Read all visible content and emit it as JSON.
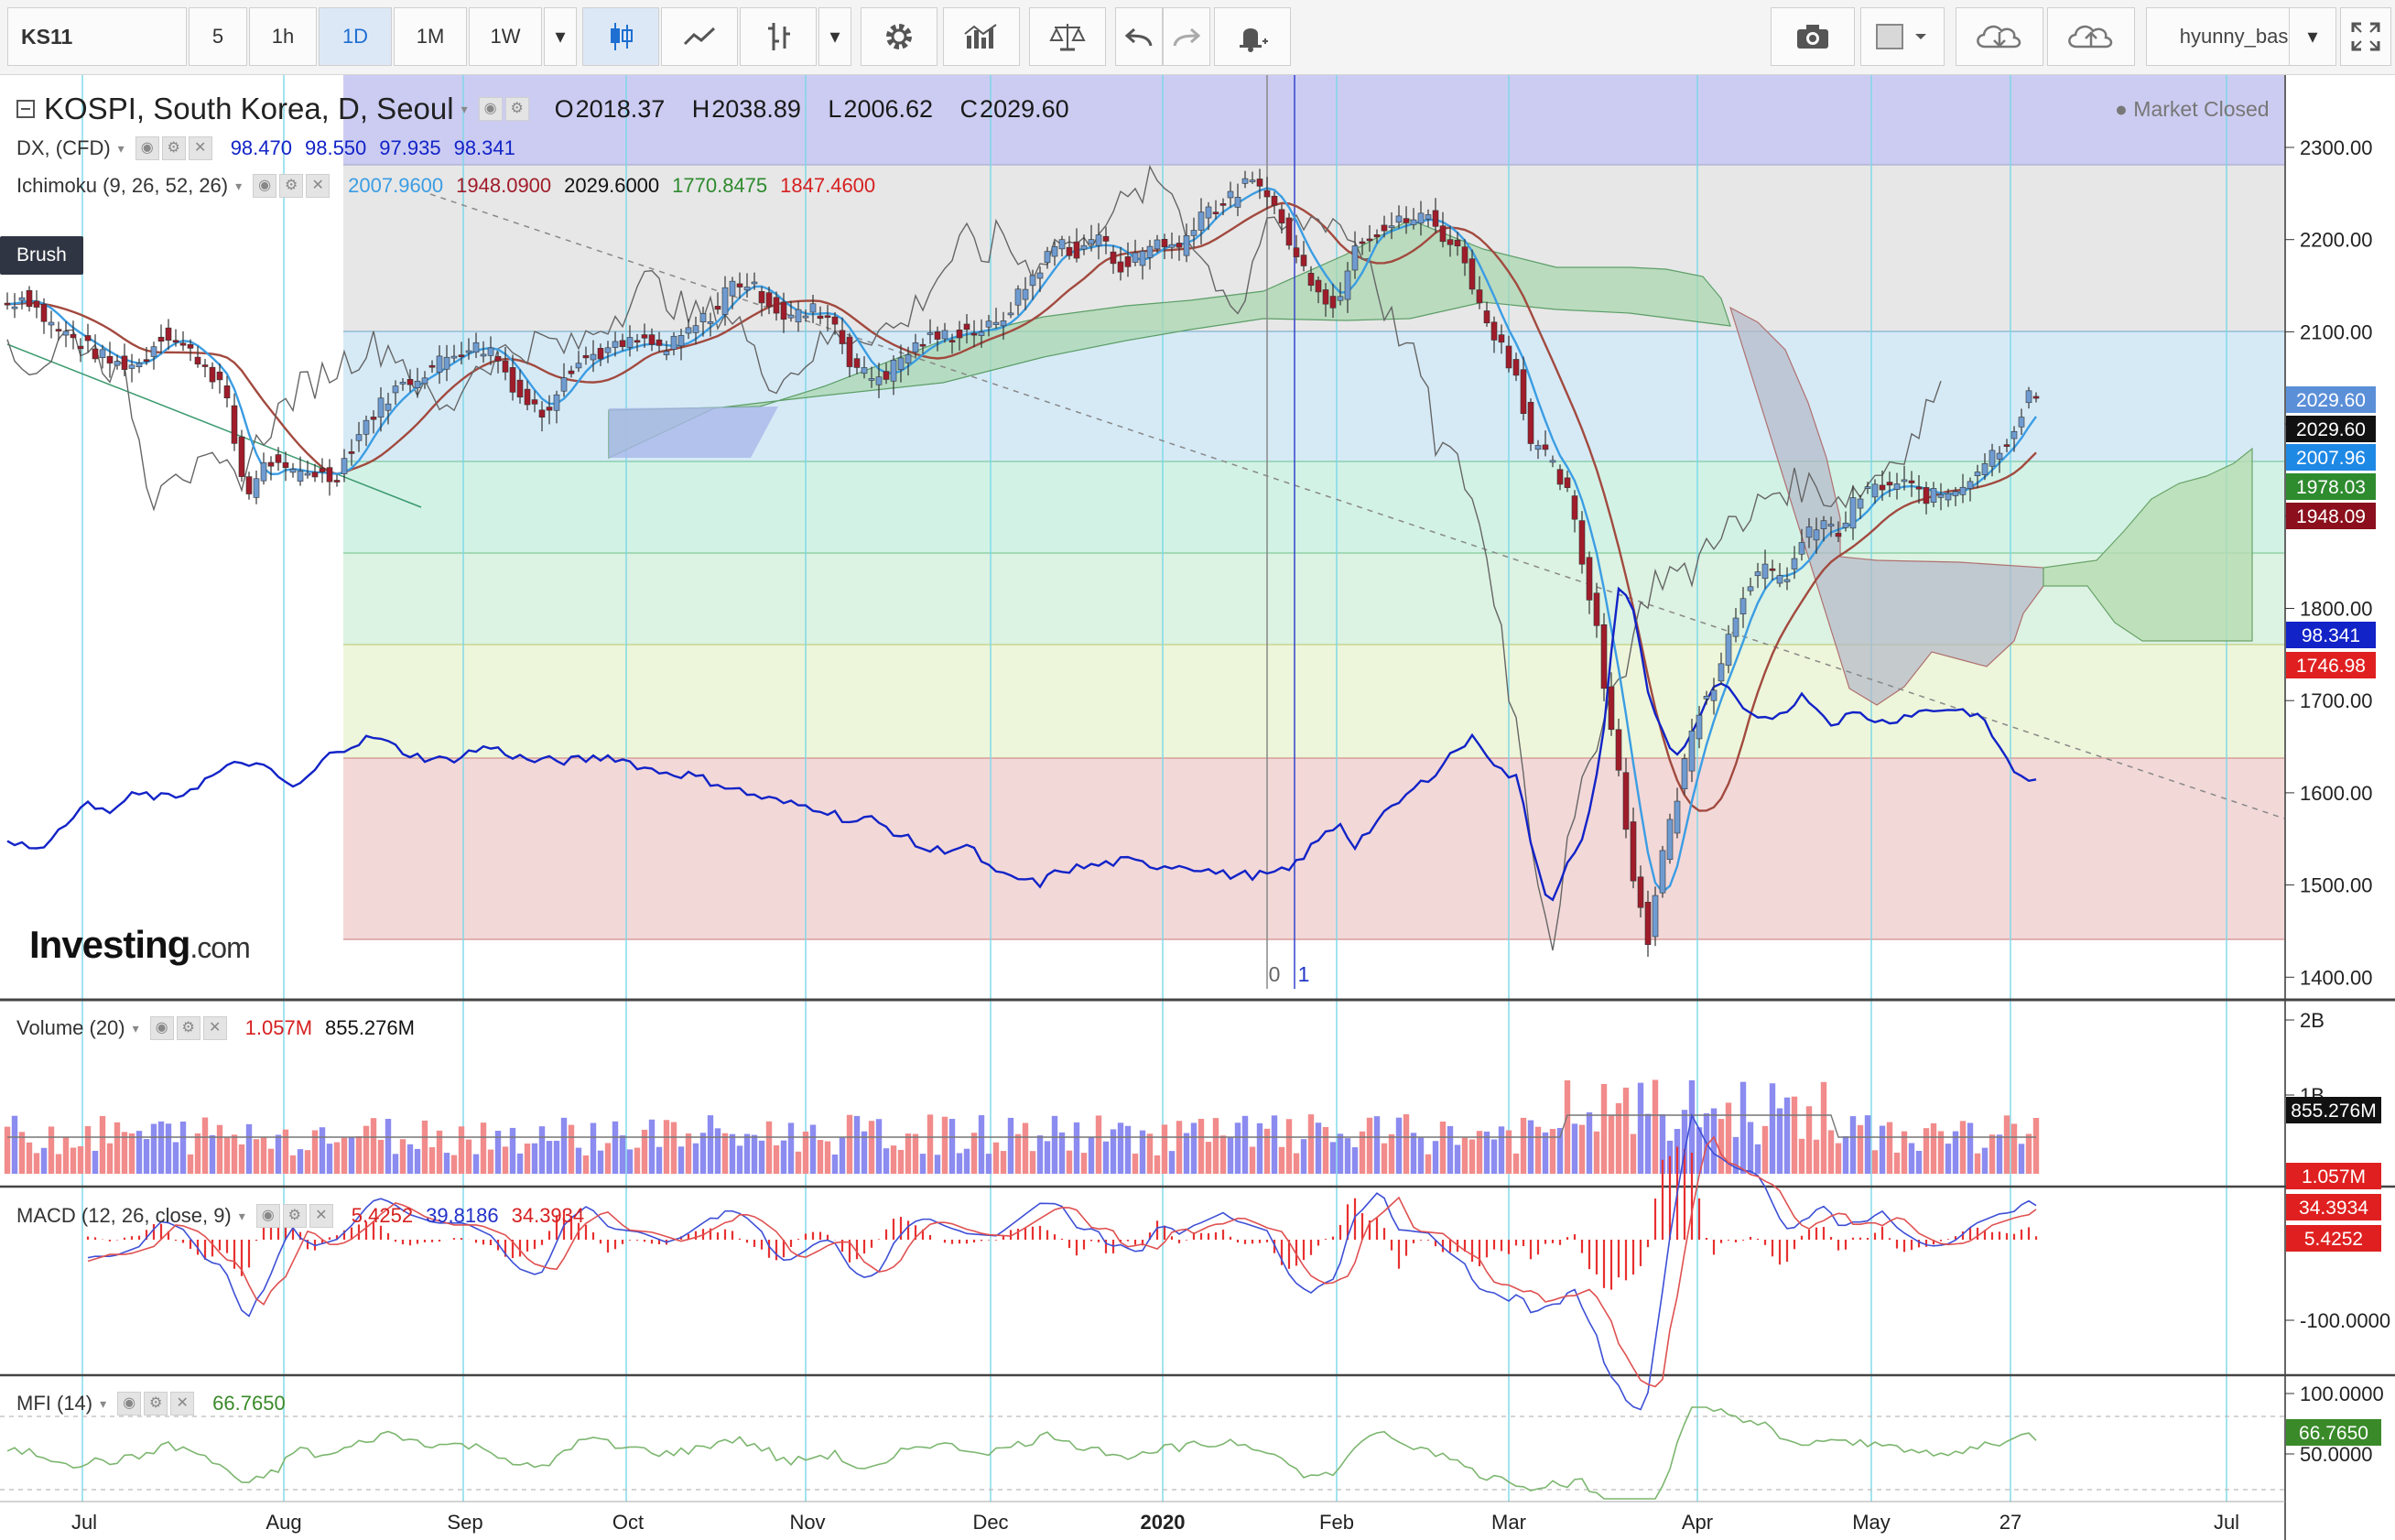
{
  "toolbar": {
    "symbol": "KS11",
    "intervals": [
      "5",
      "1h",
      "1D",
      "1M",
      "1W"
    ],
    "active_interval": "1D",
    "user": "hyunny_basic",
    "icons": [
      "candles-icon",
      "line-chart-icon",
      "bars-icon",
      "gear-icon",
      "indicators-icon",
      "compare-icon",
      "undo-icon",
      "redo-icon",
      "alert-icon",
      "camera-icon",
      "color-square-icon",
      "cloud-download-icon",
      "cloud-upload-icon",
      "fullscreen-icon"
    ]
  },
  "legend": {
    "title": "KOSPI, South Korea, D, Seoul",
    "open_label": "O",
    "open": "2018.37",
    "high_label": "H",
    "high": "2038.89",
    "low_label": "L",
    "low": "2006.62",
    "close_label": "C",
    "close": "2029.60",
    "market_status": "Market Closed",
    "dx_label": "DX, (CFD)",
    "dx_values": [
      "98.470",
      "98.550",
      "97.935",
      "98.341"
    ],
    "ichimoku_label": "Ichimoku (9, 26, 52, 26)",
    "ichimoku_values": [
      "2007.9600",
      "1948.0900",
      "2029.6000",
      "1770.8475",
      "1847.4600"
    ],
    "brush_tooltip": "Brush",
    "brand": "Investing",
    "brand_suffix": ".com"
  },
  "colors": {
    "bull_candle": "#6f9bd1",
    "bear_candle": "#a01c2a",
    "tenkan": "#3b9de3",
    "kijun": "#a24a3f",
    "chikou": "#666666",
    "dx": "#1223c7",
    "fib_gridline": "#7ad8e8",
    "volume_up": "#8b8bf0",
    "volume_down": "#f28b8b",
    "macd_line": "#3d4fd6",
    "signal_line": "#e05050",
    "histogram": "#e83030",
    "mfi_line": "#7cb66f"
  },
  "chart_data": [
    {
      "type": "candlestick",
      "title": "KOSPI, South Korea, D, Seoul",
      "x_ticks": [
        "Jul",
        "Aug",
        "Sep",
        "Oct",
        "Nov",
        "Dec",
        "2020",
        "Feb",
        "Mar",
        "Apr",
        "May",
        "27",
        "Jul"
      ],
      "y_ticks": [
        "2300.00",
        "2200.00",
        "2100.00",
        "2000.00",
        "1900.00",
        "1800.00",
        "1700.00",
        "1600.00",
        "1500.00",
        "1400.00"
      ],
      "ylim": [
        1400,
        2300
      ],
      "price_labels": [
        {
          "value": "2029.60",
          "series": "last close"
        },
        {
          "value": "2029.60",
          "series": "chikou"
        },
        {
          "value": "2007.96",
          "series": "tenkan"
        },
        {
          "value": "1978.03",
          "series": "senkou B"
        },
        {
          "value": "1948.09",
          "series": "kijun"
        },
        {
          "value": "98.341",
          "series": "DX"
        },
        {
          "value": "1746.98",
          "series": "senkou A"
        }
      ],
      "fib_levels": [
        2280,
        2100,
        1995,
        1855,
        1760,
        1640,
        1440
      ],
      "drawing_labels": [
        "0",
        "1"
      ],
      "close_path": [
        [
          0,
          2130
        ],
        [
          10,
          2140
        ],
        [
          22,
          2110
        ],
        [
          38,
          2090
        ],
        [
          46,
          2080
        ],
        [
          58,
          2065
        ],
        [
          72,
          2065
        ],
        [
          85,
          2100
        ],
        [
          105,
          2070
        ],
        [
          118,
          2040
        ],
        [
          122,
          2000
        ],
        [
          126,
          1960
        ],
        [
          131,
          1920
        ],
        [
          136,
          1945
        ],
        [
          143,
          1960
        ],
        [
          152,
          1945
        ],
        [
          165,
          1950
        ],
        [
          178,
          1940
        ],
        [
          195,
          2000
        ],
        [
          210,
          2035
        ],
        [
          230,
          2060
        ],
        [
          250,
          2085
        ],
        [
          265,
          2080
        ],
        [
          280,
          2030
        ],
        [
          293,
          2010
        ],
        [
          305,
          2060
        ],
        [
          320,
          2075
        ],
        [
          345,
          2090
        ],
        [
          360,
          2080
        ],
        [
          378,
          2110
        ],
        [
          388,
          2125
        ],
        [
          393,
          2150
        ],
        [
          402,
          2155
        ],
        [
          415,
          2135
        ],
        [
          425,
          2115
        ],
        [
          436,
          2120
        ],
        [
          442,
          2125
        ],
        [
          452,
          2110
        ],
        [
          460,
          2070
        ],
        [
          470,
          2050
        ],
        [
          480,
          2055
        ],
        [
          490,
          2075
        ],
        [
          500,
          2090
        ],
        [
          520,
          2100
        ],
        [
          540,
          2105
        ],
        [
          560,
          2160
        ],
        [
          575,
          2200
        ],
        [
          585,
          2180
        ],
        [
          595,
          2210
        ],
        [
          603,
          2180
        ],
        [
          610,
          2170
        ],
        [
          628,
          2200
        ],
        [
          640,
          2190
        ],
        [
          651,
          2230
        ],
        [
          666,
          2240
        ],
        [
          676,
          2260
        ],
        [
          688,
          2255
        ],
        [
          695,
          2220
        ],
        [
          705,
          2175
        ],
        [
          716,
          2150
        ],
        [
          726,
          2120
        ],
        [
          735,
          2200
        ],
        [
          748,
          2210
        ],
        [
          762,
          2220
        ],
        [
          776,
          2225
        ],
        [
          786,
          2200
        ],
        [
          796,
          2180
        ],
        [
          805,
          2120
        ],
        [
          812,
          2100
        ],
        [
          825,
          2050
        ],
        [
          832,
          1980
        ],
        [
          842,
          1960
        ],
        [
          853,
          1920
        ],
        [
          860,
          1850
        ],
        [
          868,
          1780
        ],
        [
          873,
          1700
        ],
        [
          878,
          1660
        ],
        [
          884,
          1560
        ],
        [
          890,
          1490
        ],
        [
          896,
          1440
        ],
        [
          902,
          1520
        ],
        [
          910,
          1580
        ],
        [
          918,
          1650
        ],
        [
          925,
          1700
        ],
        [
          932,
          1720
        ],
        [
          940,
          1770
        ],
        [
          950,
          1830
        ],
        [
          960,
          1840
        ],
        [
          970,
          1830
        ],
        [
          980,
          1870
        ],
        [
          990,
          1895
        ],
        [
          1000,
          1880
        ],
        [
          1010,
          1920
        ],
        [
          1020,
          1930
        ],
        [
          1035,
          1935
        ],
        [
          1050,
          1920
        ],
        [
          1065,
          1930
        ],
        [
          1075,
          1950
        ],
        [
          1085,
          1970
        ],
        [
          1095,
          1990
        ],
        [
          1103,
          2030
        ],
        [
          1108,
          2029.6
        ]
      ],
      "dx_path": [
        [
          0,
          97.2
        ],
        [
          10,
          97.0
        ],
        [
          25,
          97.1
        ],
        [
          40,
          97.9
        ],
        [
          55,
          97.7
        ],
        [
          70,
          98.1
        ],
        [
          90,
          98.0
        ],
        [
          118,
          98.6
        ],
        [
          130,
          98.8
        ],
        [
          142,
          98.6
        ],
        [
          158,
          98.2
        ],
        [
          178,
          99.0
        ],
        [
          200,
          99.3
        ],
        [
          222,
          98.9
        ],
        [
          240,
          98.8
        ],
        [
          262,
          99.1
        ],
        [
          285,
          98.8
        ],
        [
          310,
          98.8
        ],
        [
          330,
          98.9
        ],
        [
          352,
          98.6
        ],
        [
          372,
          98.5
        ],
        [
          390,
          98.3
        ],
        [
          405,
          98.1
        ],
        [
          425,
          97.9
        ],
        [
          445,
          97.8
        ],
        [
          462,
          97.5
        ],
        [
          470,
          97.6
        ],
        [
          485,
          97.3
        ],
        [
          503,
          96.9
        ],
        [
          525,
          97.0
        ],
        [
          540,
          96.4
        ],
        [
          555,
          96.3
        ],
        [
          563,
          96.2
        ],
        [
          575,
          96.5
        ],
        [
          595,
          96.6
        ],
        [
          610,
          96.7
        ],
        [
          625,
          96.6
        ],
        [
          645,
          96.6
        ],
        [
          665,
          96.4
        ],
        [
          690,
          96.4
        ],
        [
          700,
          96.5
        ],
        [
          718,
          97.2
        ],
        [
          728,
          97.5
        ],
        [
          735,
          97.0
        ],
        [
          748,
          97.5
        ],
        [
          762,
          98.0
        ],
        [
          778,
          98.5
        ],
        [
          790,
          99.0
        ],
        [
          802,
          99.3
        ],
        [
          815,
          98.6
        ],
        [
          825,
          98.4
        ],
        [
          834,
          96.8
        ],
        [
          842,
          95.8
        ],
        [
          852,
          96.6
        ],
        [
          862,
          97.2
        ],
        [
          872,
          99.5
        ],
        [
          880,
          102.5
        ],
        [
          888,
          102.0
        ],
        [
          896,
          100.2
        ],
        [
          905,
          99.3
        ],
        [
          912,
          98.9
        ],
        [
          920,
          99.4
        ],
        [
          935,
          100.5
        ],
        [
          945,
          100.0
        ],
        [
          955,
          99.6
        ],
        [
          968,
          99.8
        ],
        [
          982,
          100.2
        ],
        [
          995,
          99.6
        ],
        [
          1010,
          99.8
        ],
        [
          1025,
          99.6
        ],
        [
          1040,
          99.8
        ],
        [
          1060,
          99.9
        ],
        [
          1075,
          99.8
        ],
        [
          1085,
          99.3
        ],
        [
          1095,
          98.6
        ],
        [
          1108,
          98.341
        ]
      ]
    },
    {
      "type": "bar",
      "title": "Volume (20)",
      "legend_values": [
        "1.057M",
        "855.276M"
      ],
      "y_ticks": [
        "2B",
        "1B"
      ],
      "price_labels": [
        "855.276M",
        "1.057M"
      ]
    },
    {
      "type": "line",
      "title": "MACD (12, 26, close, 9)",
      "legend_values": [
        "5.4252",
        "39.8186",
        "34.3934"
      ],
      "y_ticks": [
        "-100.0000"
      ],
      "price_labels": [
        "34.3934",
        "5.4252"
      ]
    },
    {
      "type": "line",
      "title": "MFI (14)",
      "legend_values": [
        "66.7650"
      ],
      "y_ticks": [
        "100.0000",
        "50.0000"
      ],
      "price_labels": [
        "66.7650"
      ]
    }
  ]
}
